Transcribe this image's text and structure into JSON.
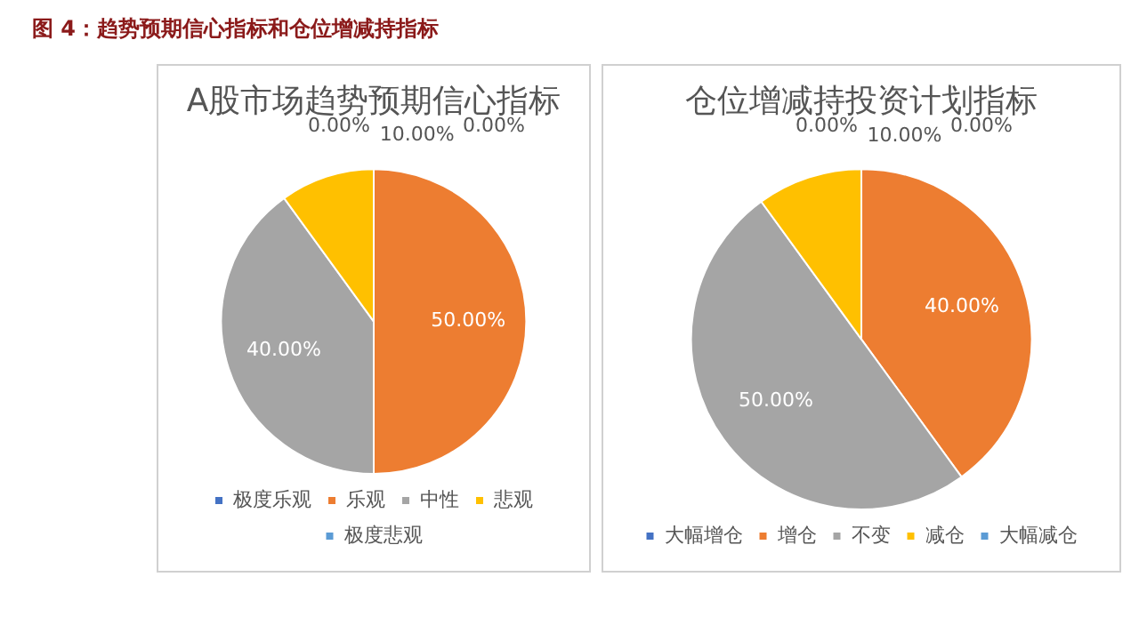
{
  "chart_data": [
    {
      "type": "pie",
      "title": "A股市场趋势预期信心指标",
      "annotations": [
        "图 4：趋势预期信心指标和仓位增减持指标"
      ],
      "categories": [
        "极度乐观",
        "乐观",
        "中性",
        "悲观",
        "极度悲观"
      ],
      "values": [
        0,
        50,
        40,
        10,
        0
      ],
      "colors": [
        "#4472c4",
        "#ed7d31",
        "#a5a5a5",
        "#ffc000",
        "#5b9bd5"
      ],
      "value_labels": [
        "0.00%",
        "50.00%",
        "40.00%",
        "10.00%",
        "0.00%"
      ],
      "legend": "bottom"
    },
    {
      "type": "pie",
      "title": "仓位增减持投资计划指标",
      "categories": [
        "大幅增仓",
        "增仓",
        "不变",
        "减仓",
        "大幅减仓"
      ],
      "values": [
        0,
        40,
        50,
        10,
        0
      ],
      "colors": [
        "#4472c4",
        "#ed7d31",
        "#a5a5a5",
        "#ffc000",
        "#5b9bd5"
      ],
      "value_labels": [
        "0.00%",
        "40.00%",
        "50.00%",
        "10.00%",
        "0.00%"
      ],
      "legend": "bottom"
    }
  ]
}
